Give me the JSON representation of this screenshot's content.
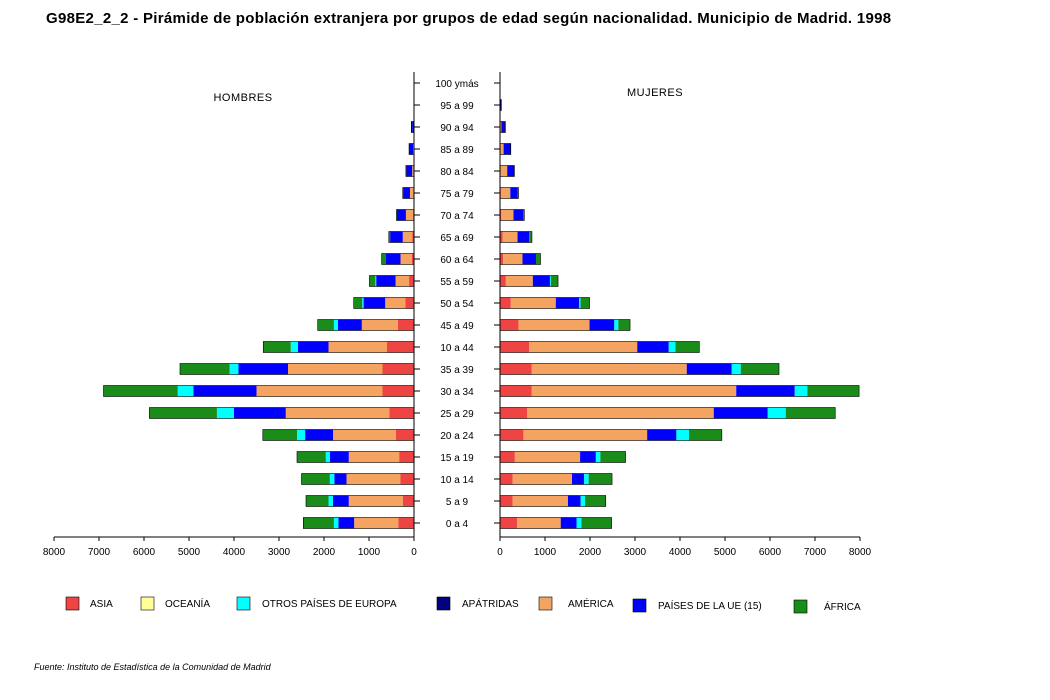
{
  "title": "G98E2_2_2 - Pirámide de población extranjera por grupos de edad según nacionalidad.  Municipio de Madrid.  1998",
  "source": "Fuente: Instituto de Estadística de la Comunidad de Madrid",
  "chart_data": {
    "type": "population-pyramid (stacked horizontal bar)",
    "panel_labels": {
      "left": "HOMBRES",
      "right": "MUJERES"
    },
    "x_ticks_left": [
      8000,
      7000,
      6000,
      5000,
      4000,
      3000,
      2000,
      1000,
      0
    ],
    "x_ticks_right": [
      0,
      1000,
      2000,
      3000,
      4000,
      5000,
      6000,
      7000,
      8000
    ],
    "xlim": [
      0,
      8000
    ],
    "legend_position": "bottom",
    "stack_order": [
      "ASIA",
      "OCEANÍA",
      "AMÉRICA",
      "PAÍSES DE LA UE (15)",
      "OTROS PAÍSES DE EUROPA",
      "ÁFRICA",
      "APÁTRIDAS"
    ],
    "legend": [
      {
        "name": "ASIA",
        "color": "#ee4444"
      },
      {
        "name": "OCEANÍA",
        "color": "#ffff99"
      },
      {
        "name": "OTROS PAÍSES DE EUROPA",
        "color": "#00ffff"
      },
      {
        "name": "APÁTRIDAS",
        "color": "#000080"
      },
      {
        "name": "AMÉRICA",
        "color": "#f4a460"
      },
      {
        "name": "PAÍSES DE LA UE (15)",
        "color": "#0000ff"
      },
      {
        "name": "ÁFRICA",
        "color": "#1a8c1a"
      }
    ],
    "age_groups": [
      {
        "label": "100 ymás",
        "men": {
          "ASIA": 0,
          "OCEANÍA": 0,
          "AMÉRICA": 0,
          "PAÍSES DE LA UE (15)": 0,
          "OTROS PAÍSES DE EUROPA": 0,
          "ÁFRICA": 0,
          "APÁTRIDAS": 0
        },
        "women": {
          "ASIA": 0,
          "OCEANÍA": 0,
          "AMÉRICA": 0,
          "PAÍSES DE LA UE (15)": 0,
          "OTROS PAÍSES DE EUROPA": 0,
          "ÁFRICA": 0,
          "APÁTRIDAS": 0
        }
      },
      {
        "label": "95 a 99",
        "men": {
          "ASIA": 0,
          "OCEANÍA": 0,
          "AMÉRICA": 0,
          "PAÍSES DE LA UE (15)": 0,
          "OTROS PAÍSES DE EUROPA": 0,
          "ÁFRICA": 0,
          "APÁTRIDAS": 0
        },
        "women": {
          "ASIA": 0,
          "OCEANÍA": 0,
          "AMÉRICA": 0,
          "PAÍSES DE LA UE (15)": 10,
          "OTROS PAÍSES DE EUROPA": 0,
          "ÁFRICA": 0,
          "APÁTRIDAS": 20
        }
      },
      {
        "label": "90 a 94",
        "men": {
          "ASIA": 0,
          "OCEANÍA": 0,
          "AMÉRICA": 10,
          "PAÍSES DE LA UE (15)": 30,
          "OTROS PAÍSES DE EUROPA": 0,
          "ÁFRICA": 0,
          "APÁTRIDAS": 20
        },
        "women": {
          "ASIA": 0,
          "OCEANÍA": 0,
          "AMÉRICA": 30,
          "PAÍSES DE LA UE (15)": 60,
          "OTROS PAÍSES DE EUROPA": 0,
          "ÁFRICA": 0,
          "APÁTRIDAS": 30
        }
      },
      {
        "label": "85 a 89",
        "men": {
          "ASIA": 0,
          "OCEANÍA": 0,
          "AMÉRICA": 20,
          "PAÍSES DE LA UE (15)": 70,
          "OTROS PAÍSES DE EUROPA": 0,
          "ÁFRICA": 0,
          "APÁTRIDAS": 20
        },
        "women": {
          "ASIA": 0,
          "OCEANÍA": 0,
          "AMÉRICA": 80,
          "PAÍSES DE LA UE (15)": 130,
          "OTROS PAÍSES DE EUROPA": 0,
          "ÁFRICA": 0,
          "APÁTRIDAS": 30
        }
      },
      {
        "label": "80 a 84",
        "men": {
          "ASIA": 0,
          "OCEANÍA": 0,
          "AMÉRICA": 40,
          "PAÍSES DE LA UE (15)": 120,
          "OTROS PAÍSES DE EUROPA": 0,
          "ÁFRICA": 0,
          "APÁTRIDAS": 20
        },
        "women": {
          "ASIA": 10,
          "OCEANÍA": 0,
          "AMÉRICA": 150,
          "PAÍSES DE LA UE (15)": 140,
          "OTROS PAÍSES DE EUROPA": 0,
          "ÁFRICA": 0,
          "APÁTRIDAS": 20
        }
      },
      {
        "label": "75 a 79",
        "men": {
          "ASIA": 0,
          "OCEANÍA": 0,
          "AMÉRICA": 90,
          "PAÍSES DE LA UE (15)": 150,
          "OTROS PAÍSES DE EUROPA": 0,
          "ÁFRICA": 0,
          "APÁTRIDAS": 10
        },
        "women": {
          "ASIA": 20,
          "OCEANÍA": 0,
          "AMÉRICA": 210,
          "PAÍSES DE LA UE (15)": 160,
          "OTROS PAÍSES DE EUROPA": 0,
          "ÁFRICA": 10,
          "APÁTRIDAS": 10
        }
      },
      {
        "label": "70 a 74",
        "men": {
          "ASIA": 20,
          "OCEANÍA": 0,
          "AMÉRICA": 160,
          "PAÍSES DE LA UE (15)": 200,
          "OTROS PAÍSES DE EUROPA": 0,
          "ÁFRICA": 10,
          "APÁTRIDAS": 0
        },
        "women": {
          "ASIA": 30,
          "OCEANÍA": 0,
          "AMÉRICA": 270,
          "PAÍSES DE LA UE (15)": 220,
          "OTROS PAÍSES DE EUROPA": 0,
          "ÁFRICA": 20,
          "APÁTRIDAS": 0
        }
      },
      {
        "label": "65 a 69",
        "men": {
          "ASIA": 40,
          "OCEANÍA": 0,
          "AMÉRICA": 210,
          "PAÍSES DE LA UE (15)": 280,
          "OTROS PAÍSES DE EUROPA": 0,
          "ÁFRICA": 30,
          "APÁTRIDAS": 0
        },
        "women": {
          "ASIA": 60,
          "OCEANÍA": 0,
          "AMÉRICA": 330,
          "PAÍSES DE LA UE (15)": 260,
          "OTROS PAÍSES DE EUROPA": 0,
          "ÁFRICA": 60,
          "APÁTRIDAS": 0
        }
      },
      {
        "label": "60 a 64",
        "men": {
          "ASIA": 50,
          "OCEANÍA": 0,
          "AMÉRICA": 250,
          "PAÍSES DE LA UE (15)": 330,
          "OTROS PAÍSES DE EUROPA": 0,
          "ÁFRICA": 90,
          "APÁTRIDAS": 0
        },
        "women": {
          "ASIA": 70,
          "OCEANÍA": 0,
          "AMÉRICA": 430,
          "PAÍSES DE LA UE (15)": 300,
          "OTROS PAÍSES DE EUROPA": 0,
          "ÁFRICA": 100,
          "APÁTRIDAS": 0
        }
      },
      {
        "label": "55 a 59",
        "men": {
          "ASIA": 110,
          "OCEANÍA": 0,
          "AMÉRICA": 300,
          "PAÍSES DE LA UE (15)": 430,
          "OTROS PAÍSES DE EUROPA": 20,
          "ÁFRICA": 130,
          "APÁTRIDAS": 0
        },
        "women": {
          "ASIA": 130,
          "OCEANÍA": 0,
          "AMÉRICA": 600,
          "PAÍSES DE LA UE (15)": 380,
          "OTROS PAÍSES DE EUROPA": 20,
          "ÁFRICA": 160,
          "APÁTRIDAS": 0
        }
      },
      {
        "label": "50 a 54",
        "men": {
          "ASIA": 190,
          "OCEANÍA": 0,
          "AMÉRICA": 450,
          "PAÍSES DE LA UE (15)": 480,
          "OTROS PAÍSES DE EUROPA": 30,
          "ÁFRICA": 190,
          "APÁTRIDAS": 0
        },
        "women": {
          "ASIA": 240,
          "OCEANÍA": 0,
          "AMÉRICA": 1000,
          "PAÍSES DE LA UE (15)": 520,
          "OTROS PAÍSES DE EUROPA": 30,
          "ÁFRICA": 200,
          "APÁTRIDAS": 0
        }
      },
      {
        "label": "45 a 49",
        "men": {
          "ASIA": 360,
          "OCEANÍA": 0,
          "AMÉRICA": 800,
          "PAÍSES DE LA UE (15)": 530,
          "OTROS PAÍSES DE EUROPA": 90,
          "ÁFRICA": 360,
          "APÁTRIDAS": 0
        },
        "women": {
          "ASIA": 410,
          "OCEANÍA": 0,
          "AMÉRICA": 1580,
          "PAÍSES DE LA UE (15)": 550,
          "OTROS PAÍSES DE EUROPA": 90,
          "ÁFRICA": 260,
          "APÁTRIDAS": 0
        }
      },
      {
        "label": "10 a  44",
        "men": {
          "ASIA": 600,
          "OCEANÍA": 0,
          "AMÉRICA": 1300,
          "PAÍSES DE LA UE (15)": 680,
          "OTROS PAÍSES DE EUROPA": 160,
          "ÁFRICA": 610,
          "APÁTRIDAS": 0
        },
        "women": {
          "ASIA": 650,
          "OCEANÍA": 0,
          "AMÉRICA": 2400,
          "PAÍSES DE LA UE (15)": 700,
          "OTROS PAÍSES DE EUROPA": 150,
          "ÁFRICA": 530,
          "APÁTRIDAS": 0
        }
      },
      {
        "label": "35 a 39",
        "men": {
          "ASIA": 700,
          "OCEANÍA": 0,
          "AMÉRICA": 2100,
          "PAÍSES DE LA UE (15)": 1100,
          "OTROS PAÍSES DE EUROPA": 200,
          "ÁFRICA": 1100,
          "APÁTRIDAS": 0
        },
        "women": {
          "ASIA": 700,
          "OCEANÍA": 0,
          "AMÉRICA": 3450,
          "PAÍSES DE LA UE (15)": 1000,
          "OTROS PAÍSES DE EUROPA": 200,
          "ÁFRICA": 850,
          "APÁTRIDAS": 0
        }
      },
      {
        "label": "30 a 34",
        "men": {
          "ASIA": 700,
          "OCEANÍA": 0,
          "AMÉRICA": 2800,
          "PAÍSES DE LA UE (15)": 1400,
          "OTROS PAÍSES DE EUROPA": 350,
          "ÁFRICA": 1650,
          "APÁTRIDAS": 0
        },
        "women": {
          "ASIA": 700,
          "OCEANÍA": 0,
          "AMÉRICA": 4550,
          "PAÍSES DE LA UE (15)": 1300,
          "OTROS PAÍSES DE EUROPA": 280,
          "ÁFRICA": 1150,
          "APÁTRIDAS": 0
        }
      },
      {
        "label": "25 a 29",
        "men": {
          "ASIA": 550,
          "OCEANÍA": 0,
          "AMÉRICA": 2300,
          "PAÍSES DE LA UE (15)": 1150,
          "OTROS PAÍSES DE EUROPA": 380,
          "ÁFRICA": 1500,
          "APÁTRIDAS": 0
        },
        "women": {
          "ASIA": 600,
          "OCEANÍA": 0,
          "AMÉRICA": 4150,
          "PAÍSES DE LA UE (15)": 1200,
          "OTROS PAÍSES DE EUROPA": 400,
          "ÁFRICA": 1100,
          "APÁTRIDAS": 0
        }
      },
      {
        "label": "20 a 24",
        "men": {
          "ASIA": 400,
          "OCEANÍA": 0,
          "AMÉRICA": 1400,
          "PAÍSES DE LA UE (15)": 620,
          "OTROS PAÍSES DE EUROPA": 180,
          "ÁFRICA": 760,
          "APÁTRIDAS": 0
        },
        "women": {
          "ASIA": 520,
          "OCEANÍA": 0,
          "AMÉRICA": 2750,
          "PAÍSES DE LA UE (15)": 650,
          "OTROS PAÍSES DE EUROPA": 280,
          "ÁFRICA": 730,
          "APÁTRIDAS": 0
        }
      },
      {
        "label": "15 a 19",
        "men": {
          "ASIA": 330,
          "OCEANÍA": 0,
          "AMÉRICA": 1120,
          "PAÍSES DE LA UE (15)": 420,
          "OTROS PAÍSES DE EUROPA": 90,
          "ÁFRICA": 640,
          "APÁTRIDAS": 0
        },
        "women": {
          "ASIA": 330,
          "OCEANÍA": 0,
          "AMÉRICA": 1450,
          "PAÍSES DE LA UE (15)": 350,
          "OTROS PAÍSES DE EUROPA": 100,
          "ÁFRICA": 560,
          "APÁTRIDAS": 0
        }
      },
      {
        "label": "10 a 14",
        "men": {
          "ASIA": 300,
          "OCEANÍA": 0,
          "AMÉRICA": 1200,
          "PAÍSES DE LA UE (15)": 270,
          "OTROS PAÍSES DE EUROPA": 100,
          "ÁFRICA": 630,
          "APÁTRIDAS": 0
        },
        "women": {
          "ASIA": 280,
          "OCEANÍA": 0,
          "AMÉRICA": 1320,
          "PAÍSES DE LA UE (15)": 270,
          "OTROS PAÍSES DE EUROPA": 100,
          "ÁFRICA": 520,
          "APÁTRIDAS": 0
        }
      },
      {
        "label": "5 a 9",
        "men": {
          "ASIA": 250,
          "OCEANÍA": 0,
          "AMÉRICA": 1200,
          "PAÍSES DE LA UE (15)": 350,
          "OTROS PAÍSES DE EUROPA": 100,
          "ÁFRICA": 500,
          "APÁTRIDAS": 0
        },
        "women": {
          "ASIA": 280,
          "OCEANÍA": 0,
          "AMÉRICA": 1230,
          "PAÍSES DE LA UE (15)": 280,
          "OTROS PAÍSES DE EUROPA": 100,
          "ÁFRICA": 460,
          "APÁTRIDAS": 0
        }
      },
      {
        "label": "0 a 4",
        "men": {
          "ASIA": 350,
          "OCEANÍA": 0,
          "AMÉRICA": 980,
          "PAÍSES DE LA UE (15)": 350,
          "OTROS PAÍSES DE EUROPA": 100,
          "ÁFRICA": 680,
          "APÁTRIDAS": 0
        },
        "women": {
          "ASIA": 380,
          "OCEANÍA": 0,
          "AMÉRICA": 970,
          "PAÍSES DE LA UE (15)": 350,
          "OTROS PAÍSES DE EUROPA": 110,
          "ÁFRICA": 670,
          "APÁTRIDAS": 0
        }
      }
    ]
  }
}
